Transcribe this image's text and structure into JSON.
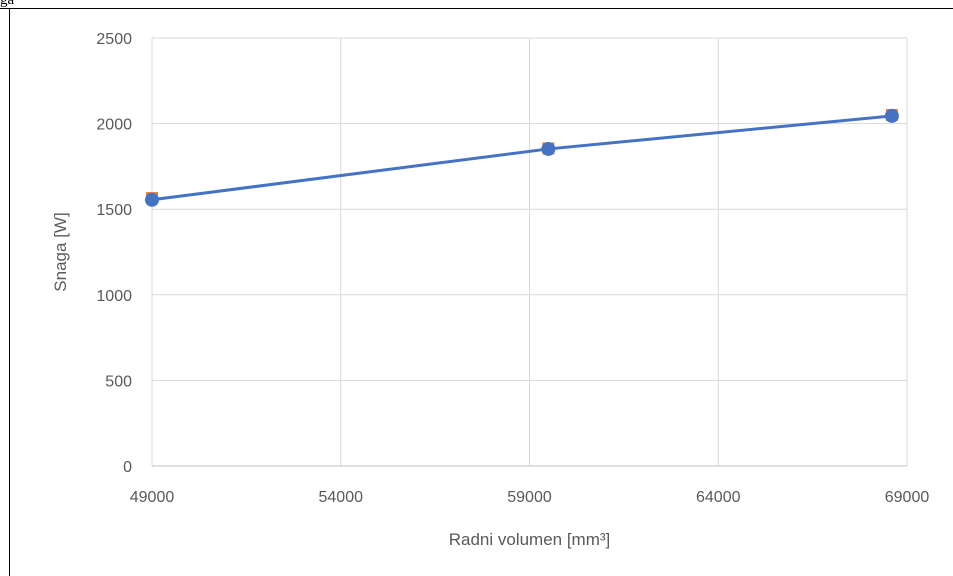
{
  "header_fragment": "ga",
  "chart_data": {
    "type": "scatter",
    "title": "",
    "xlabel": "Radni volumen [mm³]",
    "ylabel": "Snaga [W]",
    "xlim": [
      49000,
      69000
    ],
    "ylim": [
      0,
      2500
    ],
    "xticks": [
      49000,
      54000,
      59000,
      64000,
      69000
    ],
    "yticks": [
      0,
      500,
      1000,
      1500,
      2000,
      2500
    ],
    "grid": true,
    "legend": "none",
    "series": [
      {
        "color": "#ED7D31",
        "marker": "square",
        "line": false,
        "x": [
          49000,
          59500,
          68600
        ],
        "y": [
          1565,
          1855,
          2050
        ]
      },
      {
        "color": "#4472C4",
        "marker": "circle",
        "line": true,
        "x": [
          49000,
          59500,
          68600
        ],
        "y": [
          1555,
          1852,
          2045
        ]
      }
    ]
  }
}
